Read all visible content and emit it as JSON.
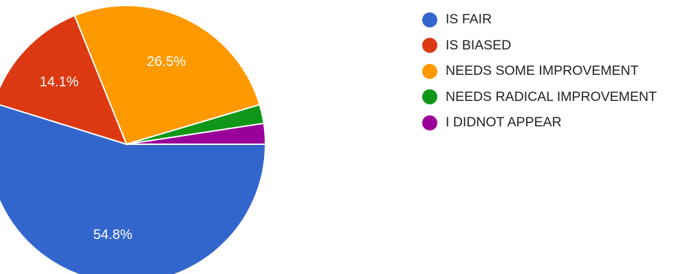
{
  "chart_data": {
    "type": "pie",
    "title": "",
    "slices": [
      {
        "label": "IS FAIR",
        "value": 54.8,
        "display": "54.8%",
        "color": "#3366cc"
      },
      {
        "label": "IS BIASED",
        "value": 14.1,
        "display": "14.1%",
        "color": "#dc3912"
      },
      {
        "label": "NEEDS SOME IMPROVEMENT",
        "value": 26.5,
        "display": "26.5%",
        "color": "#ff9900"
      },
      {
        "label": "NEEDS RADICAL IMPROVEMENT",
        "value": 2.2,
        "display": "",
        "color": "#109618"
      },
      {
        "label": "I DIDNOT APPEAR",
        "value": 2.4,
        "display": "",
        "color": "#990099"
      }
    ],
    "legend_position": "right"
  }
}
